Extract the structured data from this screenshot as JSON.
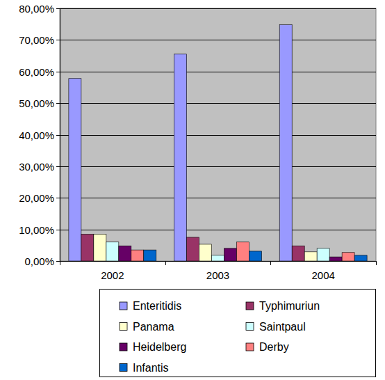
{
  "chart_data": {
    "type": "bar",
    "categories": [
      "2002",
      "2003",
      "2004"
    ],
    "series": [
      {
        "name": "Enteritidis",
        "color": "#9999ff",
        "values": [
          57.8,
          65.5,
          74.8
        ]
      },
      {
        "name": "Typhimuriun",
        "color": "#993366",
        "values": [
          8.5,
          7.5,
          4.8
        ]
      },
      {
        "name": "Panama",
        "color": "#ffffcc",
        "values": [
          8.5,
          5.3,
          2.9
        ]
      },
      {
        "name": "Saintpaul",
        "color": "#ccffff",
        "values": [
          6.0,
          1.8,
          4.0
        ]
      },
      {
        "name": "Heidelberg",
        "color": "#660066",
        "values": [
          4.8,
          4.0,
          1.3
        ]
      },
      {
        "name": "Derby",
        "color": "#ff8080",
        "values": [
          3.5,
          6.0,
          2.7
        ]
      },
      {
        "name": "Infantis",
        "color": "#0066cc",
        "values": [
          3.5,
          3.1,
          1.8
        ]
      }
    ],
    "ylim": [
      0,
      80
    ],
    "yticks": [
      {
        "value": 0,
        "label": "0,00%"
      },
      {
        "value": 10,
        "label": "10,00%"
      },
      {
        "value": 20,
        "label": "20,00%"
      },
      {
        "value": 30,
        "label": "30,00%"
      },
      {
        "value": 40,
        "label": "40,00%"
      },
      {
        "value": 50,
        "label": "50,00%"
      },
      {
        "value": 60,
        "label": "60,00%"
      },
      {
        "value": 70,
        "label": "70,00%"
      },
      {
        "value": 80,
        "label": "80,00%"
      }
    ],
    "grid": true,
    "legend": "bottom"
  }
}
